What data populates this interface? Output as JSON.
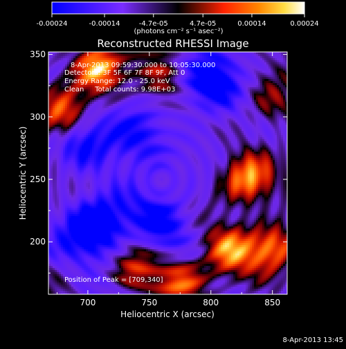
{
  "chart_data": {
    "type": "heatmap",
    "title": "Reconstructed RHESSI Image",
    "xlabel": "Heliocentric X (arcsec)",
    "ylabel": "Heliocentric Y (arcsec)",
    "xlim": [
      668,
      862
    ],
    "ylim": [
      158,
      352
    ],
    "x_ticks": [
      700,
      750,
      800,
      850
    ],
    "y_ticks": [
      200,
      250,
      300,
      350
    ],
    "grid": false,
    "colorbar": {
      "position": "top",
      "range": [
        -0.00024,
        0.00024
      ],
      "tick_labels": [
        "-0.00024",
        "-0.00014",
        "-4.7e-05",
        "4.7e-05",
        "0.00014",
        "0.00024"
      ],
      "tick_values": [
        -0.00024,
        -0.00014,
        -4.7e-05,
        4.7e-05,
        0.00014,
        0.00024
      ],
      "unit_label": "(photons cm⁻² s⁻¹ asec⁻²)"
    },
    "annotations": [
      "8-Apr-2013 09:59:30.000 to 10:05:30.000",
      "Detectors: 3F 5F 6F 7F 8F 9F, Att 0",
      "Energy Range: 12.0 - 25.0 keV",
      "Clean     Total counts: 9.98E+03"
    ],
    "peak_label": "Position of Peak = [709,340]",
    "peak": {
      "x": 709,
      "y": 340
    },
    "bright_regions": [
      {
        "x": 709,
        "y": 340,
        "level": 1.0
      },
      {
        "x": 679,
        "y": 300,
        "level": 0.85
      },
      {
        "x": 830,
        "y": 250,
        "level": 0.8
      },
      {
        "x": 815,
        "y": 195,
        "level": 0.8
      },
      {
        "x": 850,
        "y": 195,
        "level": 0.75
      },
      {
        "x": 775,
        "y": 170,
        "level": 0.7
      },
      {
        "x": 740,
        "y": 180,
        "level": 0.55
      },
      {
        "x": 760,
        "y": 325,
        "level": 0.45
      },
      {
        "x": 850,
        "y": 310,
        "level": 0.4
      }
    ],
    "dim_regions": [
      {
        "x": 705,
        "y": 210,
        "level": -0.9
      },
      {
        "x": 800,
        "y": 325,
        "level": -0.7
      },
      {
        "x": 760,
        "y": 215,
        "level": -0.6
      },
      {
        "x": 740,
        "y": 280,
        "level": -0.55
      },
      {
        "x": 695,
        "y": 285,
        "level": -0.5
      }
    ]
  },
  "footer": {
    "timestamp": "8-Apr-2013 13:45"
  },
  "colors": {
    "background": "#000000",
    "low": "#0000ff",
    "mid_low": "#7a2cff",
    "zero": "#000000",
    "mid_high": "#ff3300",
    "high": "#ffffff"
  }
}
